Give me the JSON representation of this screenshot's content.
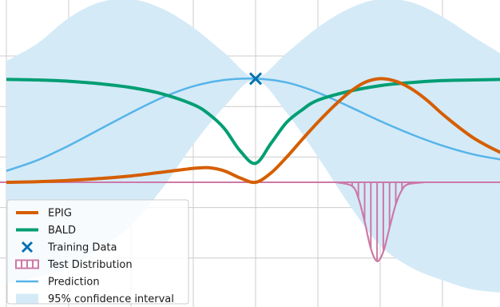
{
  "chart_data": {
    "type": "line",
    "title": "",
    "xlabel": "",
    "ylabel": "",
    "xlim": [
      -4,
      4
    ],
    "ylim": [
      -2.1,
      1.8
    ],
    "grid": true,
    "legend_placement": "bottom-left",
    "colors": {
      "epig": "#d55e00",
      "bald": "#009e73",
      "training": "#0072b2",
      "test": "#cc79a7",
      "prediction": "#56b4e9",
      "confidence": "#d4eaf7",
      "grid": "#cccccc"
    },
    "series": [
      {
        "name": "EPIG",
        "x": [
          -4,
          -3.5,
          -3,
          -2.5,
          -2,
          -1.5,
          -1,
          -0.75,
          -0.5,
          -0.25,
          0,
          0.25,
          0.5,
          0.75,
          1,
          1.25,
          1.5,
          1.75,
          2,
          2.25,
          2.5,
          2.75,
          3,
          3.25,
          3.5,
          3.75,
          4
        ],
        "y": [
          0,
          0.01,
          0.03,
          0.06,
          0.1,
          0.16,
          0.22,
          0.23,
          0.18,
          0.07,
          0.0,
          0.15,
          0.4,
          0.68,
          0.95,
          1.2,
          1.42,
          1.58,
          1.64,
          1.6,
          1.48,
          1.3,
          1.08,
          0.88,
          0.7,
          0.56,
          0.44
        ]
      },
      {
        "name": "BALD",
        "x": [
          -4,
          -3.5,
          -3,
          -2.5,
          -2,
          -1.5,
          -1,
          -0.75,
          -0.5,
          -0.25,
          0,
          0.25,
          0.5,
          0.75,
          1,
          1.5,
          2,
          2.5,
          3,
          3.5,
          4
        ],
        "y": [
          1.63,
          1.62,
          1.6,
          1.56,
          1.5,
          1.4,
          1.23,
          1.08,
          0.85,
          0.5,
          0.3,
          0.62,
          0.95,
          1.15,
          1.3,
          1.44,
          1.53,
          1.58,
          1.61,
          1.62,
          1.63
        ]
      },
      {
        "name": "Training Data",
        "x": [
          0
        ],
        "y": [
          1.64
        ]
      },
      {
        "name": "Test Distribution",
        "x": [
          1.55,
          1.65,
          1.75,
          1.85,
          1.95,
          2.05,
          2.15,
          2.25,
          2.35,
          2.45
        ],
        "y": [
          -0.06,
          -0.25,
          -0.62,
          -1.05,
          -1.25,
          -1.1,
          -0.72,
          -0.35,
          -0.12,
          -0.03
        ]
      },
      {
        "name": "Prediction",
        "x": [
          -4,
          -3.5,
          -3,
          -2.5,
          -2,
          -1.5,
          -1,
          -0.5,
          0,
          0.5,
          1,
          1.5,
          2,
          2.5,
          3,
          3.5,
          4
        ],
        "y": [
          0.18,
          0.35,
          0.58,
          0.84,
          1.1,
          1.34,
          1.52,
          1.62,
          1.64,
          1.58,
          1.42,
          1.2,
          0.97,
          0.76,
          0.58,
          0.44,
          0.35
        ]
      },
      {
        "name": "95% confidence interval",
        "x": [
          -4,
          -3.5,
          -3,
          -2.5,
          -2,
          -1.5,
          -1,
          -0.5,
          0,
          0.5,
          1,
          1.5,
          2,
          2.5,
          3,
          3.5,
          4
        ],
        "upper": [
          1.92,
          2.2,
          2.6,
          2.85,
          2.9,
          2.75,
          2.45,
          2.05,
          1.66,
          2.05,
          2.45,
          2.75,
          2.9,
          2.85,
          2.62,
          2.3,
          2.0
        ],
        "lower": [
          -1.6,
          -1.5,
          -1.35,
          -1.05,
          -0.68,
          -0.1,
          0.6,
          1.2,
          1.62,
          1.1,
          0.4,
          -0.35,
          -1.0,
          -1.35,
          -1.55,
          -1.7,
          -1.75
        ]
      }
    ],
    "legend": [
      {
        "key": "epig",
        "label": "EPIG"
      },
      {
        "key": "bald",
        "label": "BALD"
      },
      {
        "key": "training",
        "label": "Training Data"
      },
      {
        "key": "test",
        "label": "Test Distribution"
      },
      {
        "key": "prediction",
        "label": "Prediction"
      },
      {
        "key": "confidence",
        "label": "95% confidence interval"
      }
    ]
  }
}
